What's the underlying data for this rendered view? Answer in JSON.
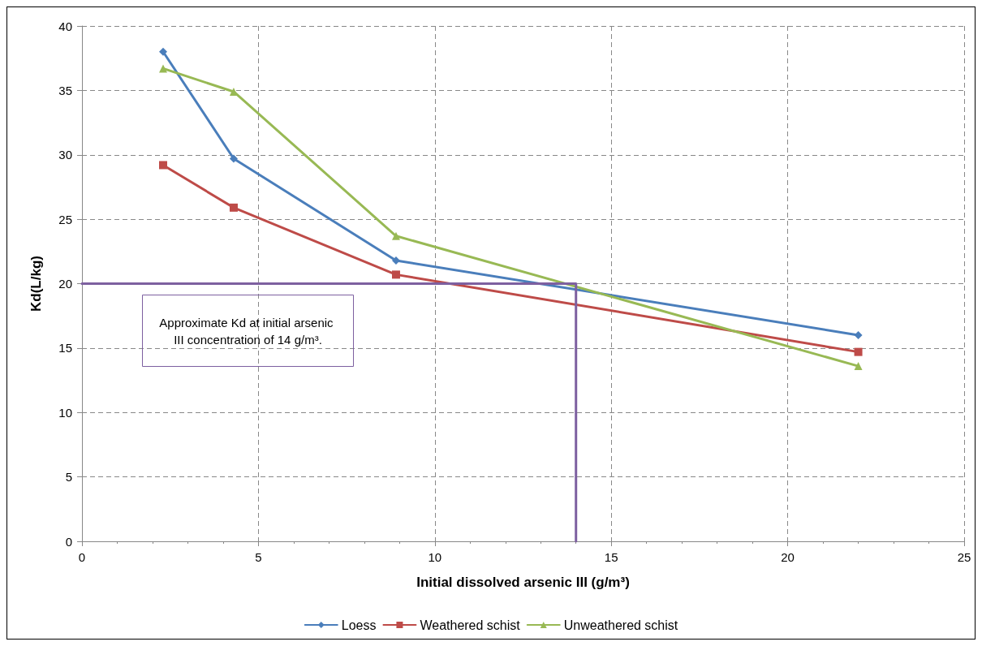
{
  "chart_data": {
    "type": "line",
    "xlabel": "Initial dissolved arsenic III (g/m³)",
    "ylabel": "Kd(L/kg)",
    "xlim": [
      0,
      25
    ],
    "xticks": [
      0,
      5,
      10,
      15,
      20,
      25
    ],
    "ylim": [
      0,
      40
    ],
    "yticks": [
      0,
      5,
      10,
      15,
      20,
      25,
      30,
      35,
      40
    ],
    "grid": true,
    "legend": "bottom",
    "line_style": "solid",
    "annotations": [
      "Approximate Kd at initial arsenic III concentration of 14 g/m³."
    ],
    "series": [
      {
        "name": "Loess",
        "color": "#4a7ebb",
        "marker": "diamond",
        "x": [
          2.3,
          4.3,
          8.9,
          22
        ],
        "values": [
          38,
          29.7,
          21.8,
          16
        ]
      },
      {
        "name": "Weathered schist",
        "color": "#be4b48",
        "marker": "square",
        "x": [
          2.3,
          4.3,
          8.9,
          22
        ],
        "values": [
          29.2,
          25.9,
          20.7,
          14.7
        ]
      },
      {
        "name": "Unweathered schist",
        "color": "#98b954",
        "marker": "triangle",
        "x": [
          2.3,
          4.3,
          8.9,
          22
        ],
        "values": [
          36.7,
          34.9,
          23.7,
          13.6
        ]
      },
      {
        "color": "#7d60a0",
        "marker": "none",
        "x": [
          0,
          14,
          14
        ],
        "values": [
          20,
          20,
          0
        ]
      }
    ]
  }
}
